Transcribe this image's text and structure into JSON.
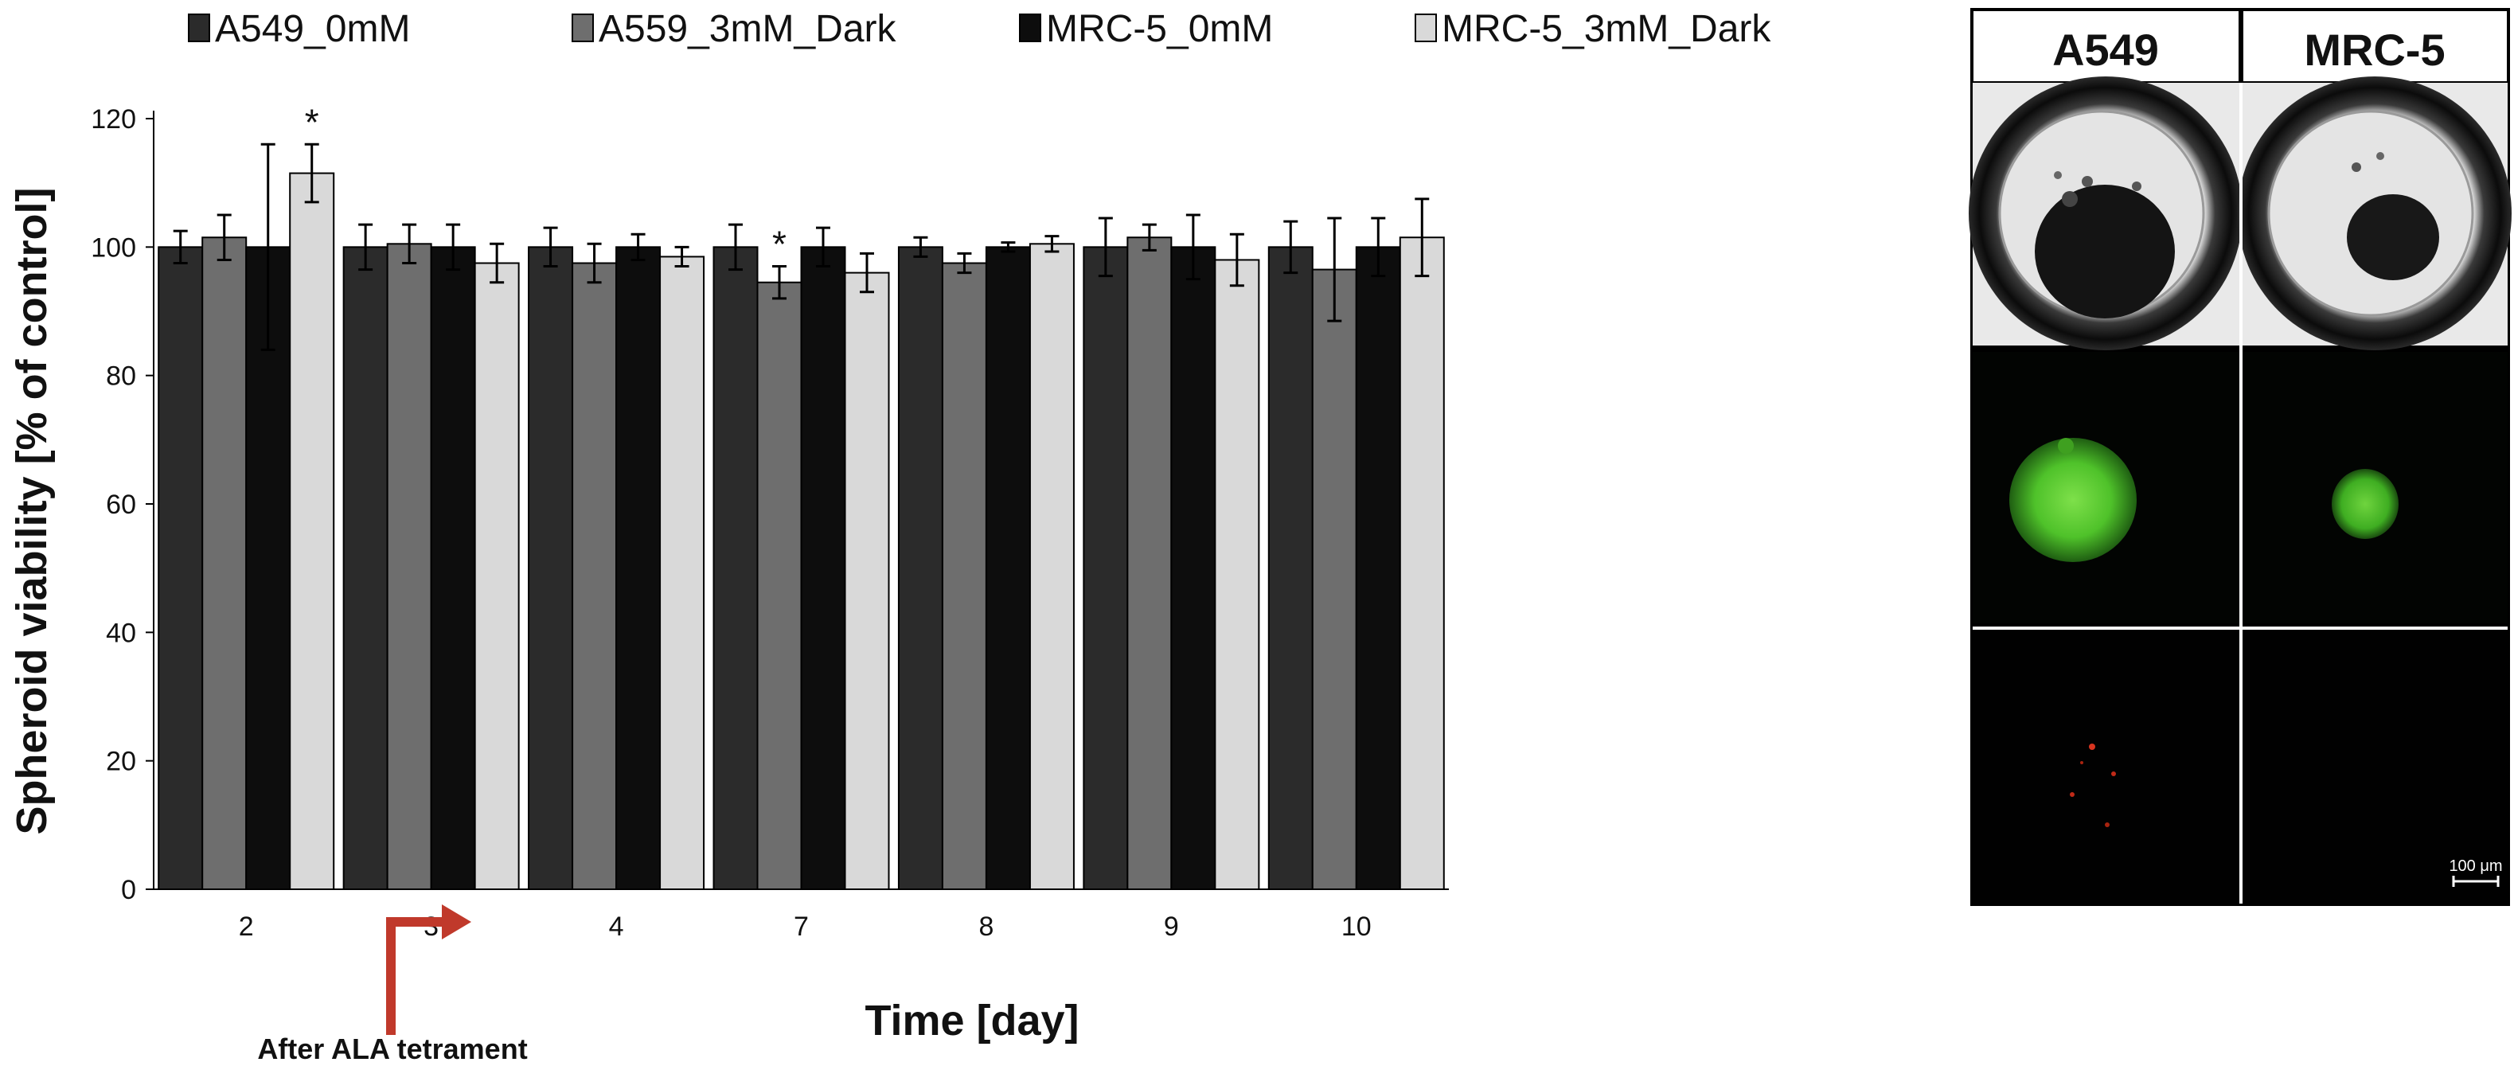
{
  "chart_data": {
    "type": "bar",
    "title": "",
    "xlabel": "Time [day]",
    "ylabel": "Spheroid viability [% of control]",
    "ylim": [
      0,
      120
    ],
    "yticks": [
      "0",
      "20",
      "40",
      "60",
      "80",
      "100",
      "120"
    ],
    "categories": [
      "2",
      "3",
      "4",
      "7",
      "8",
      "9",
      "10"
    ],
    "legend_position": "top",
    "series": [
      {
        "name": "A549_0mM",
        "color": "#2b2b2b",
        "values": [
          100,
          100,
          100,
          100,
          100,
          100,
          100
        ],
        "errors": [
          2.5,
          3.5,
          3,
          3.5,
          1.5,
          4.5,
          4
        ]
      },
      {
        "name": "A559_3mM_Dark",
        "color": "#6e6e6e",
        "values": [
          101.5,
          100.5,
          97.5,
          94.5,
          97.5,
          101.5,
          96.5
        ],
        "errors": [
          3.5,
          3,
          3,
          2.5,
          1.5,
          2,
          8
        ]
      },
      {
        "name": "MRC-5_0mM",
        "color": "#0d0d0d",
        "values": [
          100,
          100,
          100,
          100,
          100,
          100,
          100
        ],
        "errors": [
          16,
          3.5,
          2,
          3,
          0.7,
          5,
          4.5
        ]
      },
      {
        "name": "MRC-5_3mM_Dark",
        "color": "#d9d9d9",
        "values": [
          111.5,
          97.5,
          98.5,
          96,
          100.5,
          98,
          101.5
        ],
        "errors": [
          4.5,
          3,
          1.5,
          3,
          1.2,
          4,
          6
        ]
      }
    ],
    "significance": [
      {
        "category": "2",
        "series": "MRC-5_3mM_Dark",
        "mark": "*"
      },
      {
        "category": "7",
        "series": "A559_3mM_Dark",
        "mark": "*"
      }
    ],
    "annotation": {
      "text": "After ALA tetrament",
      "points_to_category": "3"
    }
  },
  "image_panel": {
    "columns": [
      "A549",
      "MRC-5"
    ],
    "scale_bar": "100 μm",
    "rows": [
      "brightfield",
      "green-fluorescence",
      "red-fluorescence"
    ]
  }
}
